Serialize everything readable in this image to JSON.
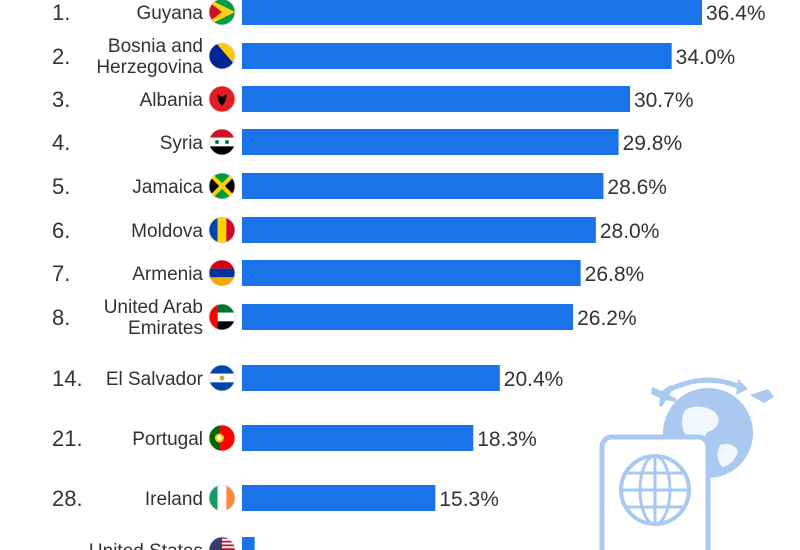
{
  "chart_data": {
    "type": "bar",
    "orientation": "horizontal",
    "xlim": [
      0,
      40
    ],
    "rows": [
      {
        "rank": "1.",
        "country": [
          "Guyana"
        ],
        "value": 36.4,
        "label": "36.4%",
        "flag": "guyana-flag-icon"
      },
      {
        "rank": "2.",
        "country": [
          "Bosnia and",
          "Herzegovina"
        ],
        "value": 34.0,
        "label": "34.0%",
        "flag": "bosnia-flag-icon"
      },
      {
        "rank": "3.",
        "country": [
          "Albania"
        ],
        "value": 30.7,
        "label": "30.7%",
        "flag": "albania-flag-icon"
      },
      {
        "rank": "4.",
        "country": [
          "Syria"
        ],
        "value": 29.8,
        "label": "29.8%",
        "flag": "syria-flag-icon"
      },
      {
        "rank": "5.",
        "country": [
          "Jamaica"
        ],
        "value": 28.6,
        "label": "28.6%",
        "flag": "jamaica-flag-icon"
      },
      {
        "rank": "6.",
        "country": [
          "Moldova"
        ],
        "value": 28.0,
        "label": "28.0%",
        "flag": "moldova-flag-icon"
      },
      {
        "rank": "7.",
        "country": [
          "Armenia"
        ],
        "value": 26.8,
        "label": "26.8%",
        "flag": "armenia-flag-icon"
      },
      {
        "rank": "8.",
        "country": [
          "United Arab",
          "Emirates"
        ],
        "value": 26.2,
        "label": "26.2%",
        "flag": "uae-flag-icon"
      },
      {
        "rank": "14.",
        "country": [
          "El Salvador"
        ],
        "value": 20.4,
        "label": "20.4%",
        "flag": "el-salvador-flag-icon"
      },
      {
        "rank": "21.",
        "country": [
          "Portugal"
        ],
        "value": 18.3,
        "label": "18.3%",
        "flag": "portugal-flag-icon"
      },
      {
        "rank": "28.",
        "country": [
          "Ireland"
        ],
        "value": 15.3,
        "label": "15.3%",
        "flag": "ireland-flag-icon"
      },
      {
        "rank": "",
        "country": [
          "United States"
        ],
        "value": 1.0,
        "label": "",
        "flag": "usa-flag-icon"
      }
    ]
  },
  "colors": {
    "bar": "#1a73e8",
    "text": "#333333",
    "decoration": "#a9c9f0"
  },
  "decoration": {
    "icons": [
      "passport-icon",
      "globe-icon",
      "airplane-icon"
    ]
  }
}
